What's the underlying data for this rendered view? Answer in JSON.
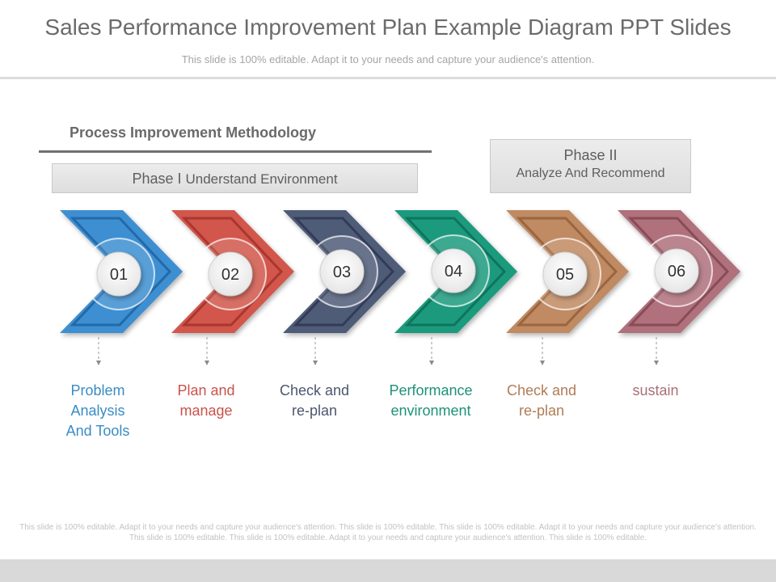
{
  "slide": {
    "title": "Sales Performance Improvement Plan Example Diagram PPT Slides",
    "subtitle": "This slide is 100% editable. Adapt it to your needs and capture your audience's attention.",
    "section_heading": "Process Improvement Methodology",
    "phase1": {
      "prefix": "Phase I",
      "text": "Understand Environment"
    },
    "phase2": {
      "title": "Phase II",
      "text": "Analyze And Recommend"
    },
    "steps": [
      {
        "number": "01",
        "label_lines": [
          "Problem",
          "Analysis",
          "And Tools"
        ],
        "color": "#3d8fd1",
        "dark": "#1d5f9d",
        "text_color": "#3a8cc4"
      },
      {
        "number": "02",
        "label_lines": [
          "Plan and",
          "manage"
        ],
        "color": "#d2574c",
        "dark": "#9e2f28",
        "text_color": "#c9534a"
      },
      {
        "number": "03",
        "label_lines": [
          "Check and",
          "re-plan"
        ],
        "color": "#4f5b78",
        "dark": "#2b3350",
        "text_color": "#4c566e"
      },
      {
        "number": "04",
        "label_lines": [
          "Performance",
          "environment"
        ],
        "color": "#1e9a7d",
        "dark": "#0d6a55",
        "text_color": "#1d9278"
      },
      {
        "number": "05",
        "label_lines": [
          "Check and",
          "re-plan"
        ],
        "color": "#c08a62",
        "dark": "#8e5c39",
        "text_color": "#b07c55"
      },
      {
        "number": "06",
        "label_lines": [
          "sustain"
        ],
        "color": "#b0707b",
        "dark": "#7e4450",
        "text_color": "#a86f78"
      }
    ],
    "footer": "This slide is 100% editable. Adapt it to your needs and capture your audience's attention. This slide is 100% editable. This slide is 100% editable. Adapt it to your needs and capture your audience's attention. This slide is 100% editable. This slide is 100% editable. Adapt it to your needs and capture your audience's attention. This slide is 100% editable."
  }
}
